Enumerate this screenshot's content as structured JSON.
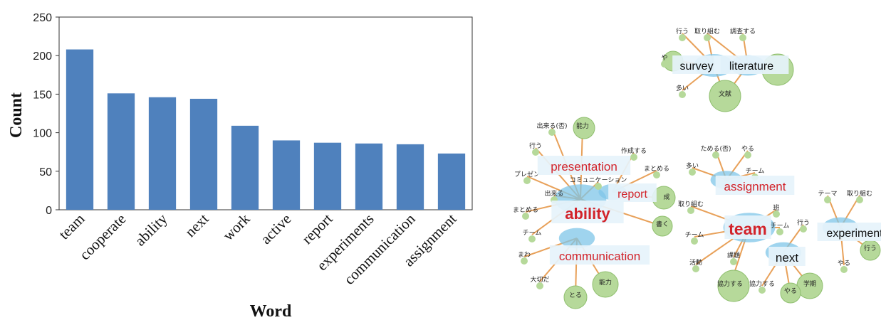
{
  "chart_data": [
    {
      "type": "bar",
      "categories": [
        "team",
        "cooperate",
        "ability",
        "next",
        "work",
        "active",
        "report",
        "experiments",
        "communication",
        "assignment"
      ],
      "values": [
        208,
        151,
        146,
        144,
        109,
        90,
        87,
        86,
        85,
        73
      ],
      "xlabel": "Word",
      "ylabel": "Count",
      "ylim": [
        0,
        250
      ],
      "yticks": [
        0,
        50,
        100,
        150,
        200,
        250
      ],
      "grid": false,
      "color": "#4f81bd"
    },
    {
      "type": "network",
      "clusters": [
        {
          "main_labels": [
            {
              "text": "survey",
              "color": "#111111"
            },
            {
              "text": "literature",
              "color": "#111111"
            }
          ],
          "words": [
            "行う",
            "取り組む",
            "調査する",
            "や",
            "多い",
            "文献"
          ]
        },
        {
          "main_labels": [
            {
              "text": "presentation",
              "color": "#d2232a"
            },
            {
              "text": "report",
              "color": "#d2232a"
            },
            {
              "text": "ability",
              "color": "#d2232a"
            },
            {
              "text": "communication",
              "color": "#d2232a"
            }
          ],
          "words": [
            "出来る(否)",
            "能力",
            "行う",
            "作成する",
            "まとめる",
            "プレゼン",
            "コミュニケーション",
            "出来る",
            "成",
            "まとめる",
            "書く",
            "チーム",
            "まわ",
            "大切だ",
            "とる",
            "能力"
          ]
        },
        {
          "main_labels": [
            {
              "text": "assignment",
              "color": "#d2232a"
            },
            {
              "text": "team",
              "color": "#d2232a"
            },
            {
              "text": "next",
              "color": "#111111"
            },
            {
              "text": "experiment",
              "color": "#111111"
            }
          ],
          "words": [
            "ためる(否)",
            "やる",
            "多い",
            "チーム",
            "取り組む",
            "班",
            "チーム",
            "チーム",
            "行う",
            "テーマ",
            "取り組む",
            "行う",
            "活動",
            "課題",
            "協力する",
            "協力する",
            "やる",
            "学期",
            "やる"
          ]
        }
      ]
    }
  ]
}
